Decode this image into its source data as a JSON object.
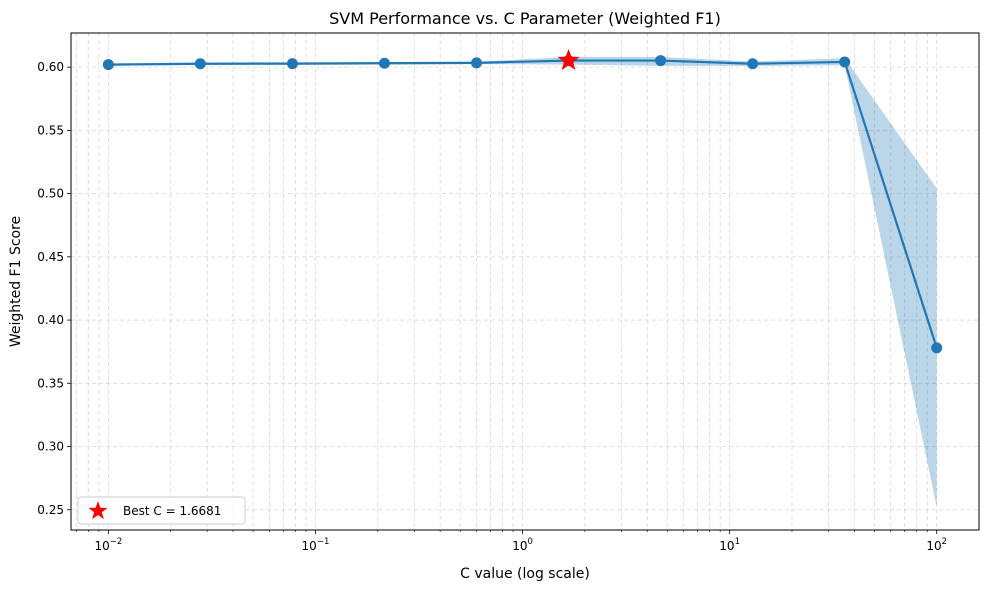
{
  "chart_data": {
    "type": "line",
    "title": "SVM Performance vs. C Parameter (Weighted F1)",
    "xlabel": "C value (log scale)",
    "ylabel": "Weighted F1 Score",
    "xscale": "log",
    "xlim": [
      0.0066,
      160
    ],
    "ylim": [
      0.234,
      0.627
    ],
    "grid": true,
    "x_ticks": [
      {
        "value": 0.01,
        "base": "10",
        "exp": "−2"
      },
      {
        "value": 0.1,
        "base": "10",
        "exp": "−1"
      },
      {
        "value": 1,
        "base": "10",
        "exp": "0"
      },
      {
        "value": 10,
        "base": "10",
        "exp": "1"
      },
      {
        "value": 100,
        "base": "10",
        "exp": "2"
      }
    ],
    "y_ticks": [
      {
        "value": 0.25,
        "label": "0.25"
      },
      {
        "value": 0.3,
        "label": "0.30"
      },
      {
        "value": 0.35,
        "label": "0.35"
      },
      {
        "value": 0.4,
        "label": "0.40"
      },
      {
        "value": 0.45,
        "label": "0.45"
      },
      {
        "value": 0.5,
        "label": "0.50"
      },
      {
        "value": 0.55,
        "label": "0.55"
      },
      {
        "value": 0.6,
        "label": "0.60"
      }
    ],
    "series": [
      {
        "x": [
          0.01,
          0.0278,
          0.0774,
          0.2154,
          0.5995,
          1.6681,
          4.6416,
          12.9155,
          35.9381,
          100
        ],
        "y": [
          0.602,
          0.6027,
          0.6028,
          0.6031,
          0.6034,
          0.6052,
          0.6052,
          0.6027,
          0.6041,
          0.378
        ],
        "y_lower": [
          0.601,
          0.6017,
          0.6018,
          0.6021,
          0.6024,
          0.602,
          0.601,
          0.601,
          0.6015,
          0.252
        ],
        "y_upper": [
          0.603,
          0.6037,
          0.6038,
          0.6041,
          0.6044,
          0.608,
          0.608,
          0.6045,
          0.607,
          0.504
        ],
        "color": "#1f77b4",
        "band_color": "#1f77b4"
      }
    ],
    "best_point": {
      "x": 1.6681,
      "y": 0.6052,
      "color": "#ff0000"
    },
    "legend": {
      "position": "lower-left",
      "label": "Best C = 1.6681"
    }
  }
}
